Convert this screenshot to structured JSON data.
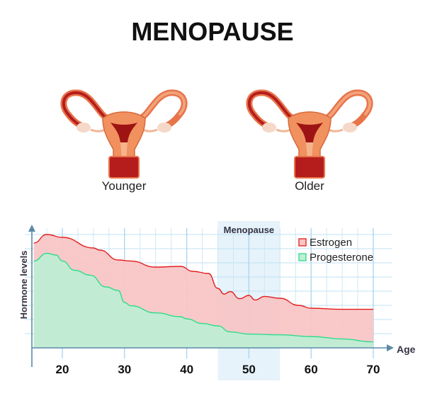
{
  "title": "MENOPAUSE",
  "illustrations": [
    {
      "label": "Younger"
    },
    {
      "label": "Older"
    }
  ],
  "chart_data": {
    "type": "area",
    "xlabel": "Age",
    "ylabel": "Hormone levels",
    "xlim": [
      15,
      73
    ],
    "ylim": [
      0,
      8
    ],
    "x_ticks": [
      20,
      30,
      40,
      50,
      60,
      70
    ],
    "grid": true,
    "legend_position": "top-right",
    "highlight": {
      "label": "Menopause",
      "x_range": [
        45,
        55
      ],
      "color": "#e6f3fa"
    },
    "series": [
      {
        "name": "Estrogen",
        "fill": "#f9c4c4",
        "stroke": "#e21e1e",
        "x": [
          15.4,
          17.5,
          20,
          25,
          26,
          29,
          31,
          35,
          39,
          41,
          43.5,
          45,
          46,
          47,
          48.5,
          50,
          51,
          52.5,
          55,
          58,
          60,
          65,
          70
        ],
        "y": [
          7.4,
          8.0,
          7.8,
          7.05,
          6.9,
          6.2,
          6.13,
          5.7,
          5.75,
          5.4,
          5.25,
          4.2,
          3.8,
          3.97,
          3.47,
          3.7,
          3.38,
          3.63,
          3.5,
          3.0,
          2.8,
          2.72,
          2.72
        ]
      },
      {
        "name": "Progesterone",
        "fill": "#bdeed5",
        "stroke": "#2fdc8a",
        "x": [
          15.4,
          17.5,
          19,
          20,
          22,
          24.5,
          27,
          29,
          30,
          31,
          35,
          39,
          40,
          42.5,
          45,
          47,
          50,
          55,
          60,
          65,
          70
        ],
        "y": [
          6.13,
          6.67,
          6.55,
          6.13,
          5.47,
          5.13,
          4.3,
          4.05,
          3.2,
          2.97,
          2.47,
          2.2,
          2.05,
          1.72,
          1.55,
          1.13,
          0.97,
          0.92,
          0.8,
          0.63,
          0.42
        ]
      }
    ]
  }
}
